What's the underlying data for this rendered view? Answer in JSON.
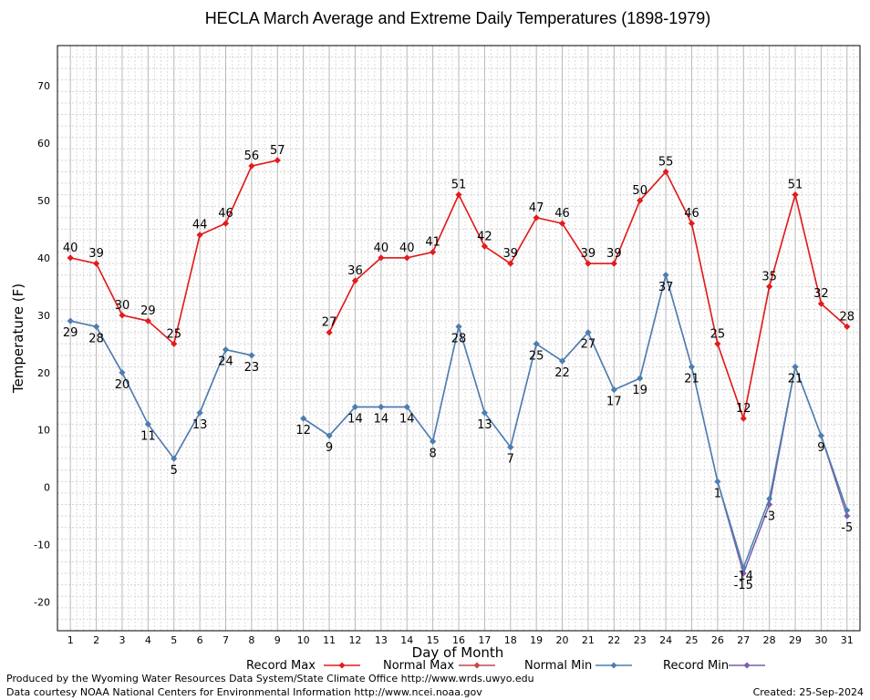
{
  "chart_data": {
    "type": "line",
    "title": "HECLA March Average and Extreme Daily Temperatures (1898-1979)",
    "xlabel": "Day of Month",
    "ylabel": "Temperature (F)",
    "x": [
      1,
      2,
      3,
      4,
      5,
      6,
      7,
      8,
      9,
      10,
      11,
      12,
      13,
      14,
      15,
      16,
      17,
      18,
      19,
      20,
      21,
      22,
      23,
      24,
      25,
      26,
      27,
      28,
      29,
      30,
      31
    ],
    "xlim": [
      0.5,
      31.5
    ],
    "ylim": [
      -25,
      77
    ],
    "yticks": [
      -20,
      -10,
      0,
      10,
      20,
      30,
      40,
      50,
      60,
      70
    ],
    "grid": true,
    "legend_position": "bottom",
    "series": [
      {
        "name": "Record Max",
        "color": "#e41a1c",
        "values": [
          40,
          39,
          30,
          29,
          25,
          44,
          46,
          56,
          57,
          null,
          27,
          36,
          40,
          40,
          41,
          51,
          42,
          39,
          47,
          46,
          39,
          39,
          50,
          55,
          46,
          25,
          12,
          35,
          51,
          32,
          28
        ]
      },
      {
        "name": "Normal Max",
        "color": "#c24a4a",
        "values": [
          40,
          39,
          30,
          29,
          25,
          44,
          46,
          56,
          57,
          null,
          27,
          36,
          40,
          40,
          41,
          51,
          42,
          39,
          47,
          46,
          39,
          39,
          50,
          55,
          46,
          25,
          12,
          35,
          51,
          32,
          28
        ]
      },
      {
        "name": "Normal Min",
        "color": "#4a7fb0",
        "values": [
          29,
          28,
          20,
          11,
          5,
          13,
          24,
          23,
          null,
          12,
          9,
          14,
          14,
          14,
          8,
          28,
          13,
          7,
          25,
          22,
          27,
          17,
          19,
          37,
          21,
          1,
          -14,
          -2,
          21,
          9,
          -4
        ]
      },
      {
        "name": "Record Min",
        "color": "#7a5fa8",
        "values": [
          29,
          28,
          20,
          11,
          5,
          13,
          24,
          23,
          null,
          12,
          9,
          14,
          14,
          14,
          8,
          28,
          13,
          7,
          25,
          22,
          27,
          17,
          19,
          37,
          21,
          1,
          -15,
          -3,
          21,
          9,
          -5
        ]
      }
    ],
    "max_labels": [
      "40",
      "39",
      "30",
      "29",
      "25",
      "44",
      "46",
      "56",
      "57",
      null,
      "27",
      "36",
      "40",
      "40",
      "41",
      "51",
      "42",
      "39",
      "47",
      "46",
      "39",
      "39",
      "50",
      "55",
      "46",
      "25",
      "12",
      "35",
      "51",
      "32",
      "28"
    ],
    "min_labels": [
      "29",
      "28",
      "20",
      "11",
      "5",
      "13",
      "24",
      "23",
      null,
      "12",
      "9",
      "14",
      "14",
      "14",
      "8",
      "28",
      "13",
      "7",
      "25",
      "22",
      "27",
      "17",
      "19",
      "37",
      "21",
      "1",
      "-15",
      "-3",
      "21",
      "9",
      "-5"
    ],
    "extra_labels": [
      {
        "day": 27,
        "text": "-14"
      }
    ]
  },
  "footer": {
    "produced_by": "Produced by the Wyoming Water Resources Data System/State Climate Office http://www.wrds.uwyo.edu",
    "data_courtesy": "Data courtesy NOAA National Centers for Environmental Information http://www.ncei.noaa.gov",
    "created": "Created:  25-Sep-2024"
  }
}
